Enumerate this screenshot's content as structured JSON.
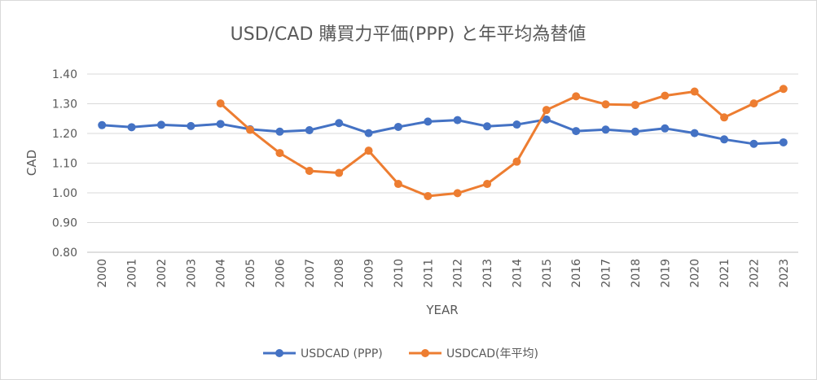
{
  "chart_data": {
    "type": "line",
    "title": "USD/CAD 購買力平価(PPP) と年平均為替値",
    "xlabel": "YEAR",
    "ylabel": "CAD",
    "ylim": [
      0.8,
      1.4
    ],
    "yticks": [
      "0.80",
      "0.90",
      "1.00",
      "1.10",
      "1.20",
      "1.30",
      "1.40"
    ],
    "grid": true,
    "legend": "bottom",
    "categories": [
      "2000",
      "2001",
      "2002",
      "2003",
      "2004",
      "2005",
      "2006",
      "2007",
      "2008",
      "2009",
      "2010",
      "2011",
      "2012",
      "2013",
      "2014",
      "2015",
      "2016",
      "2017",
      "2018",
      "2019",
      "2020",
      "2021",
      "2022",
      "2023"
    ],
    "series": [
      {
        "name": "USDCAD (PPP)",
        "color": "#4472c4",
        "values": [
          1.228,
          1.221,
          1.229,
          1.225,
          1.232,
          1.214,
          1.206,
          1.211,
          1.235,
          1.201,
          1.222,
          1.24,
          1.245,
          1.224,
          1.23,
          1.247,
          1.208,
          1.213,
          1.206,
          1.217,
          1.201,
          1.18,
          1.165,
          1.17
        ]
      },
      {
        "name": "USDCAD(年平均)",
        "color": "#ed7d31",
        "values": [
          null,
          null,
          null,
          null,
          1.301,
          1.212,
          1.134,
          1.074,
          1.067,
          1.142,
          1.03,
          0.989,
          0.999,
          1.03,
          1.105,
          1.279,
          1.325,
          1.298,
          1.296,
          1.327,
          1.341,
          1.254,
          1.301,
          1.35
        ]
      }
    ]
  }
}
